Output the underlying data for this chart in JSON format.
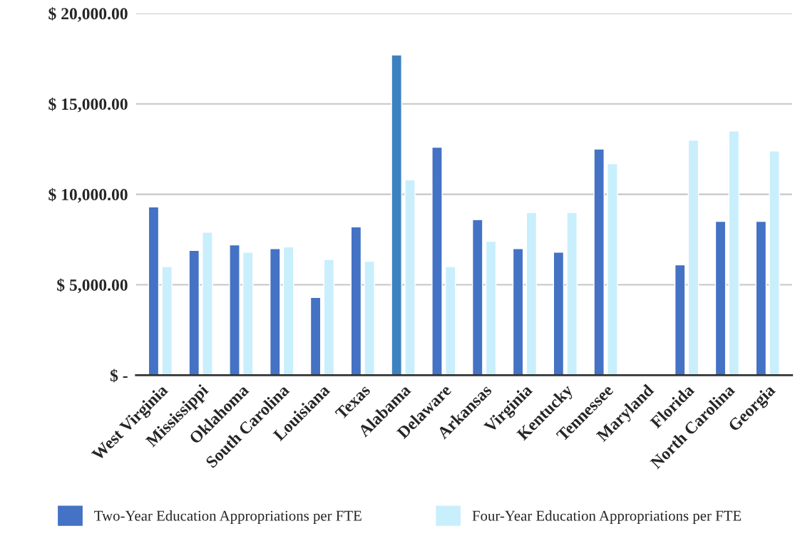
{
  "chart_data": {
    "type": "bar",
    "categories": [
      "West Virginia",
      "Mississippi",
      "Oklahoma",
      "South Carolina",
      "Louisiana",
      "Texas",
      "Alabama",
      "Delaware",
      "Arkansas",
      "Virginia",
      "Kentucky",
      "Tennessee",
      "Maryland",
      "Florida",
      "North Carolina",
      "Georgia"
    ],
    "series": [
      {
        "name": "Two-Year Education Appropriations per FTE",
        "color": "#4472c4",
        "colors": [
          "#4472c4",
          "#4472c4",
          "#4472c4",
          "#4472c4",
          "#4472c4",
          "#4472c4",
          "#3d82c0",
          "#4472c4",
          "#4472c4",
          "#4472c4",
          "#4472c4",
          "#4472c4",
          "#4472c4",
          "#4472c4",
          "#4472c4",
          "#4472c4"
        ],
        "values": [
          9300,
          6900,
          7200,
          7000,
          4300,
          8200,
          17700,
          12600,
          8600,
          7000,
          6800,
          12500,
          null,
          6100,
          8500,
          8500
        ]
      },
      {
        "name": "Four-Year Education Appropriations per FTE",
        "color": "#c9effd",
        "values": [
          6000,
          7900,
          6800,
          7100,
          6400,
          6300,
          10800,
          6000,
          7400,
          9000,
          9000,
          11700,
          null,
          13000,
          13500,
          12400
        ]
      }
    ],
    "ylim": [
      0,
      20000
    ],
    "yticks": [
      {
        "value": 0,
        "label": "$ -"
      },
      {
        "value": 5000,
        "label": "$ 5,000.00"
      },
      {
        "value": 10000,
        "label": "$ 10,000.00"
      },
      {
        "value": 15000,
        "label": "$ 15,000.00"
      },
      {
        "value": 20000,
        "label": "$ 20,000.00"
      }
    ],
    "grid": "y",
    "legend": "bottom"
  }
}
